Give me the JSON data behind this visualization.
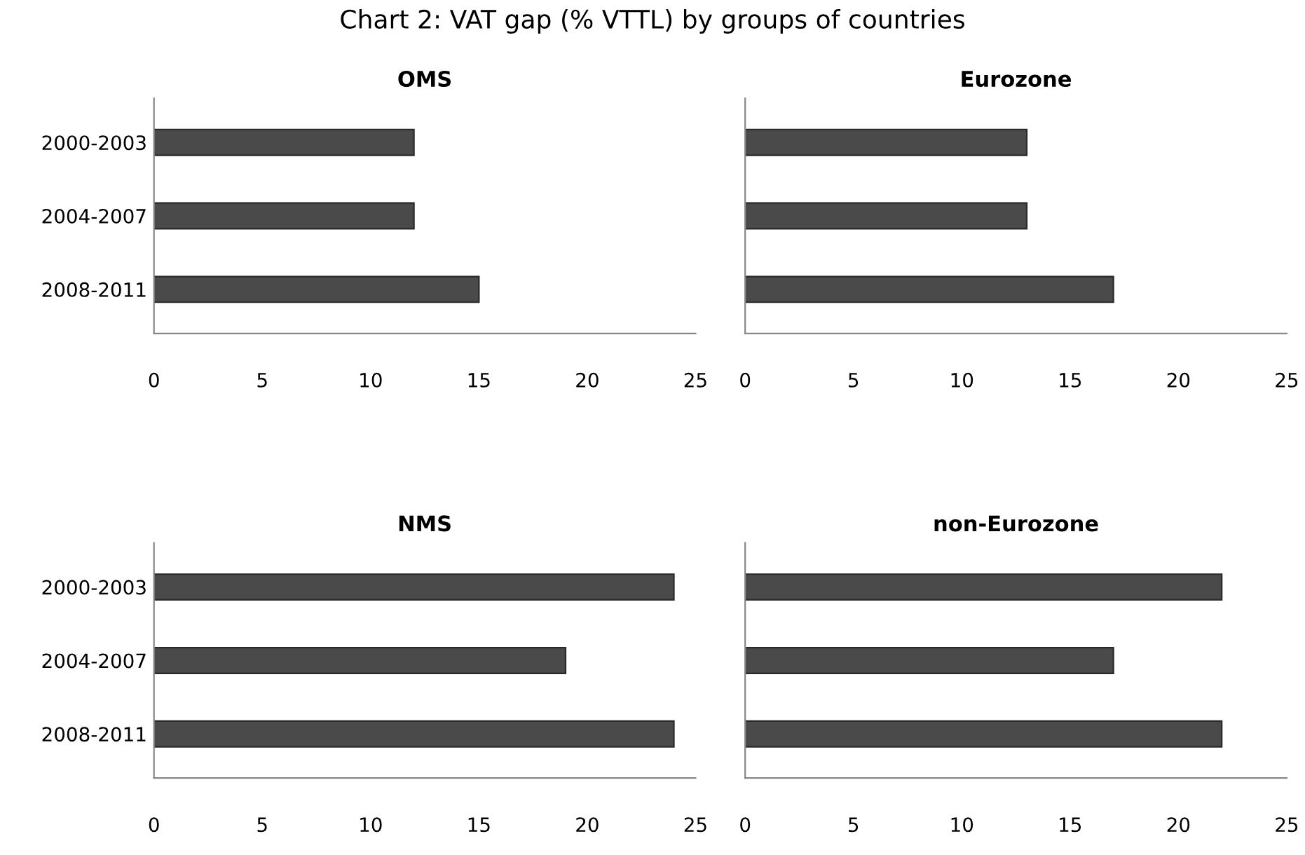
{
  "chart_data": [
    {
      "type": "bar",
      "orientation": "horizontal",
      "title": "OMS",
      "annotations": [
        "Chart 2: VAT gap (% VTTL) by groups of countries"
      ],
      "categories": [
        "2000-2003",
        "2004-2007",
        "2008-2011"
      ],
      "values": [
        12,
        12,
        15
      ],
      "color": "#4a4a4a",
      "xlim": [
        0,
        25
      ],
      "xticks": [
        0,
        5,
        10,
        15,
        20,
        25
      ],
      "grid": false,
      "legend": false
    },
    {
      "type": "bar",
      "orientation": "horizontal",
      "title": "Eurozone",
      "categories": [
        null,
        null,
        null
      ],
      "values": [
        13,
        13,
        17
      ],
      "color": "#4a4a4a",
      "xlim": [
        0,
        25
      ],
      "xticks": [
        0,
        5,
        10,
        15,
        20,
        25
      ],
      "grid": false,
      "legend": false,
      "tick_labels": "x"
    },
    {
      "type": "bar",
      "orientation": "horizontal",
      "title": "NMS",
      "categories": [
        "2000-2003",
        "2004-2007",
        "2008-2011"
      ],
      "values": [
        24,
        19,
        24
      ],
      "color": "#4a4a4a",
      "xlim": [
        0,
        25
      ],
      "xticks": [
        0,
        5,
        10,
        15,
        20,
        25
      ],
      "grid": false,
      "legend": false
    },
    {
      "type": "bar",
      "orientation": "horizontal",
      "title": "non-Eurozone",
      "categories": [
        null,
        null,
        null
      ],
      "values": [
        22,
        17,
        22
      ],
      "color": "#4a4a4a",
      "xlim": [
        0,
        25
      ],
      "xticks": [
        0,
        5,
        10,
        15,
        20,
        25
      ],
      "grid": false,
      "legend": false,
      "tick_labels": "x"
    }
  ]
}
